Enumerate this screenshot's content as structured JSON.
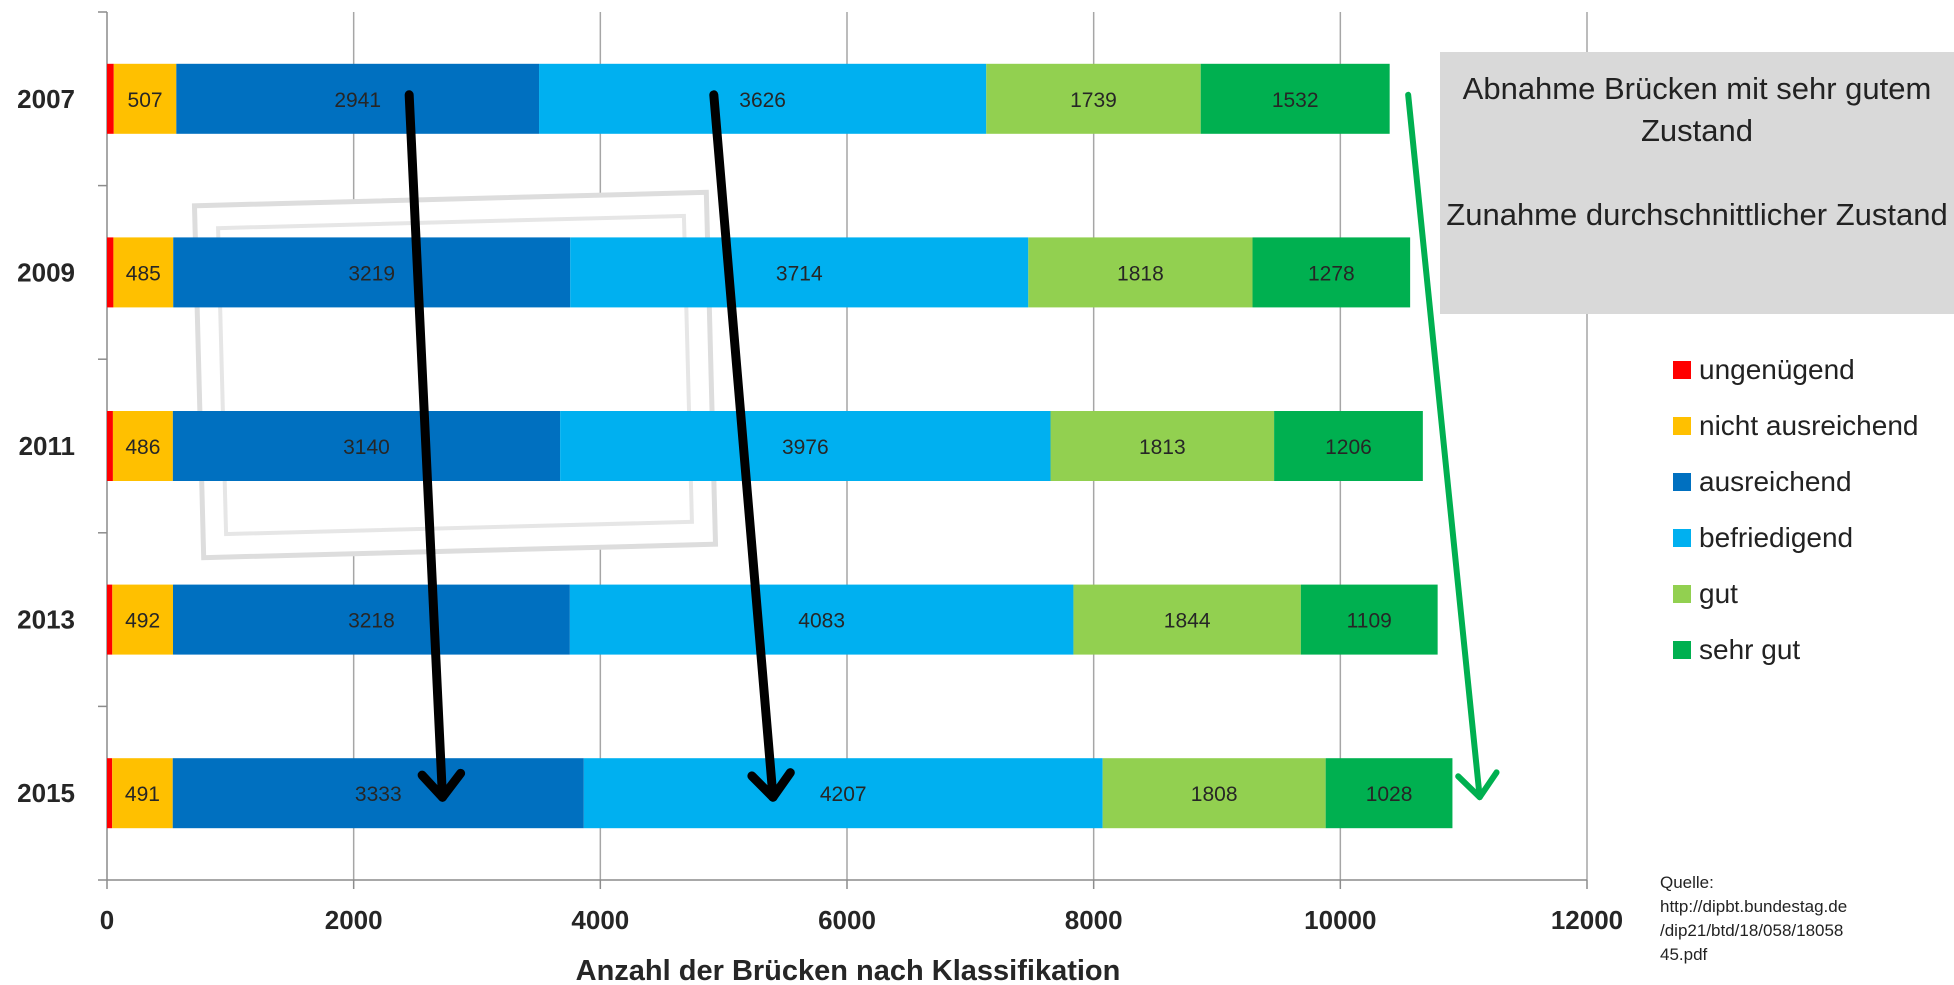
{
  "chart_data": {
    "type": "bar",
    "orientation": "horizontal",
    "stacked": true,
    "categories": [
      "2007",
      "2009",
      "2011",
      "2013",
      "2015"
    ],
    "series": [
      {
        "name": "ungenügend",
        "color": "#ff0000",
        "values": [
          55,
          52,
          48,
          43,
          42
        ],
        "show_labels": false
      },
      {
        "name": "nicht ausreichend",
        "color": "#ffc000",
        "values": [
          507,
          485,
          486,
          492,
          491
        ],
        "show_labels": true
      },
      {
        "name": "ausreichend",
        "color": "#0070c0",
        "values": [
          2941,
          3219,
          3140,
          3218,
          3333
        ],
        "show_labels": true
      },
      {
        "name": "befriedigend",
        "color": "#00b0f0",
        "values": [
          3626,
          3714,
          3976,
          4083,
          4207
        ],
        "show_labels": true
      },
      {
        "name": "gut",
        "color": "#92d050",
        "values": [
          1739,
          1818,
          1813,
          1844,
          1808
        ],
        "show_labels": true
      },
      {
        "name": "sehr gut",
        "color": "#00b050",
        "values": [
          1532,
          1278,
          1206,
          1109,
          1028
        ],
        "show_labels": true
      }
    ],
    "xlabel": "Anzahl der Brücken nach Klassifikation",
    "ylabel": "",
    "xlim": [
      0,
      12000
    ],
    "xticks": [
      0,
      2000,
      4000,
      6000,
      8000,
      10000,
      12000
    ],
    "grid": true,
    "legend_position": "right",
    "annotations": [
      {
        "type": "arrow",
        "color": "#000000",
        "from": {
          "category": "2007",
          "x": 2450
        },
        "to": {
          "category": "2015",
          "x": 2720
        }
      },
      {
        "type": "arrow",
        "color": "#000000",
        "from": {
          "category": "2007",
          "x": 4920
        },
        "to": {
          "category": "2015",
          "x": 5400
        }
      },
      {
        "type": "arrow",
        "color": "#00b050",
        "from": {
          "category": "2007",
          "x": 10550
        },
        "to": {
          "category": "2015",
          "x": 11130
        }
      }
    ]
  },
  "callout": {
    "line1": "Abnahme Brücken mit sehr gutem Zustand",
    "line2": "Zunahme durchschnittlicher Zustand"
  },
  "source": {
    "label": "Quelle:",
    "line1": "http://dipbt.bundestag.de",
    "line2": "/dip21/btd/18/058/18058",
    "line3": "45.pdf"
  }
}
